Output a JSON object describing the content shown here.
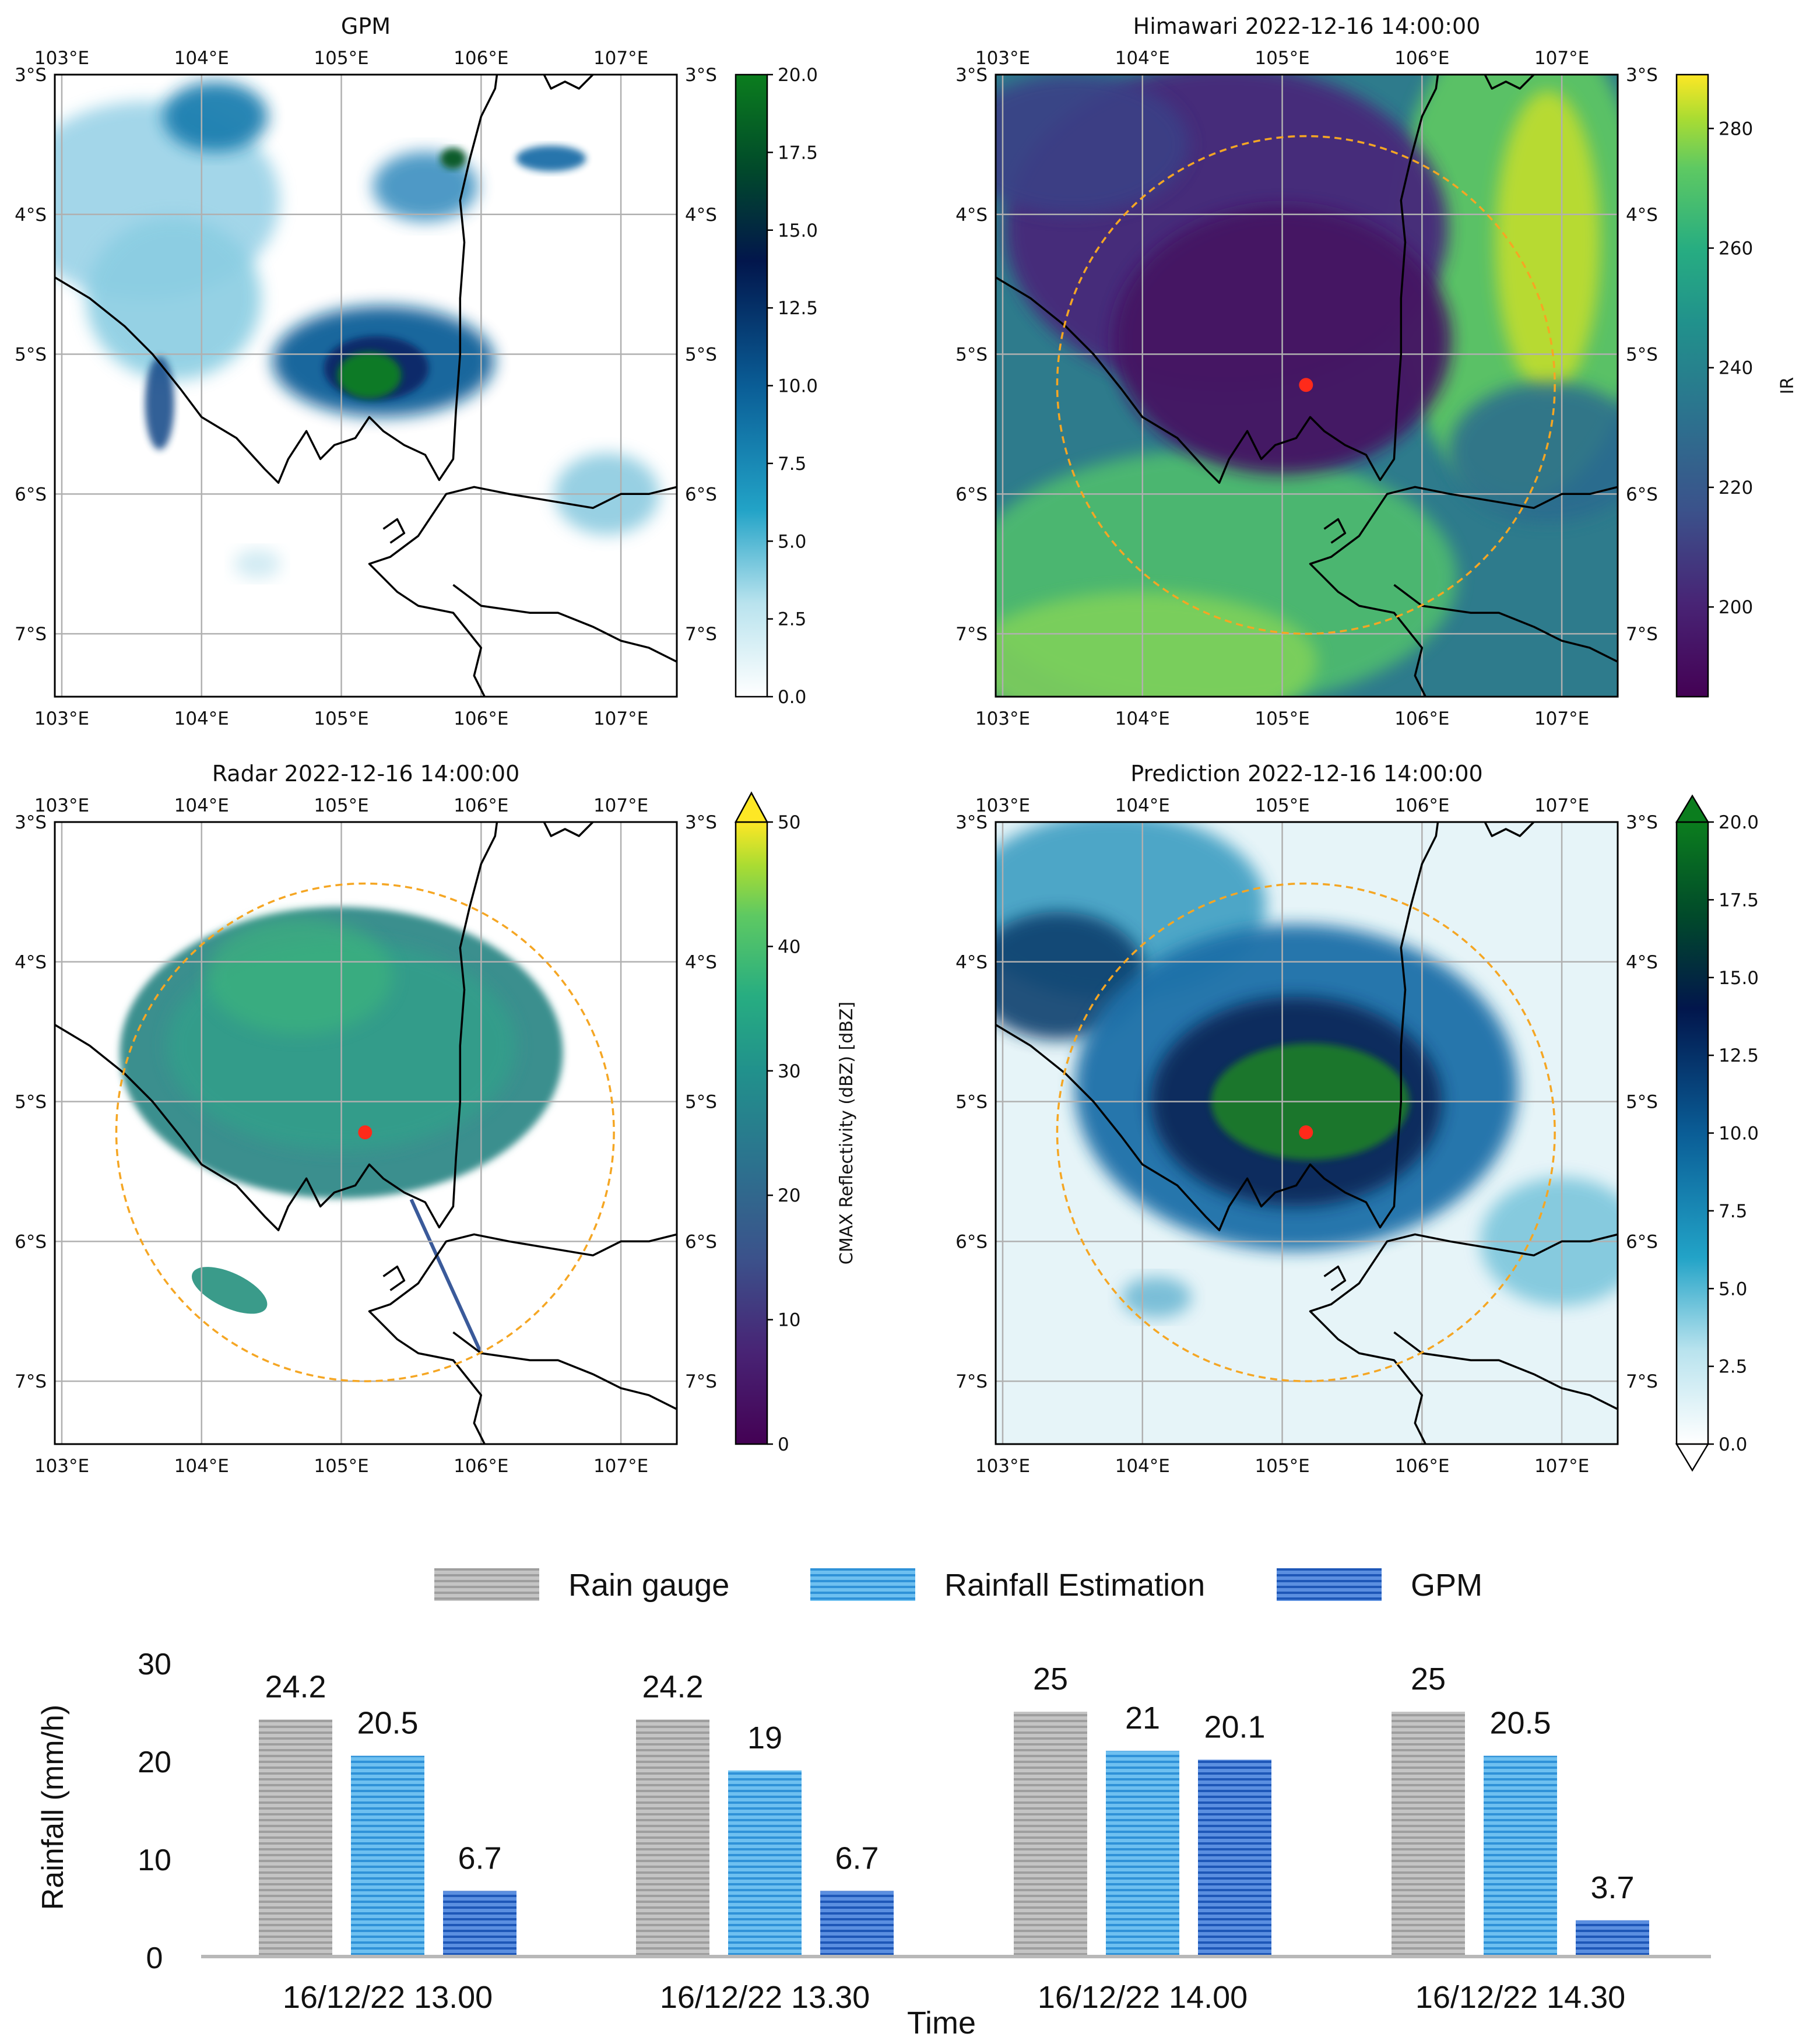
{
  "colors": {
    "gauge": "#b3b3b3",
    "estimation": "#49a9e6",
    "gpm": "#2f6fcf",
    "circle": "#f5a623",
    "center_dot": "#ff2a1a",
    "coast": "#000000",
    "grid": "#b0b0b0"
  },
  "map_axes": {
    "lon_range": [
      102.95,
      107.4
    ],
    "lat_range": [
      -7.45,
      -3.0
    ],
    "lon_ticks": [
      "103°E",
      "104°E",
      "105°E",
      "106°E",
      "107°E"
    ],
    "lat_ticks": [
      "3°S",
      "4°S",
      "5°S",
      "6°S",
      "7°S"
    ],
    "lon_tick_values": [
      103,
      104,
      105,
      106,
      107
    ],
    "lat_tick_values": [
      -3,
      -4,
      -5,
      -6,
      -7
    ],
    "radar_center": [
      105.17,
      -5.22
    ],
    "radar_radius_deg": 1.78
  },
  "panels": [
    {
      "id": "gpm",
      "title": "GPM",
      "colorbar_ticks": [
        "20.0",
        "17.5",
        "15.0",
        "12.5",
        "10.0",
        "7.5",
        "5.0",
        "2.5",
        "0.0"
      ],
      "colorbar_label": "",
      "colormap": "ocean_r",
      "show_circle": false
    },
    {
      "id": "himawari",
      "title": "Himawari 2022-12-16 14:00:00",
      "colorbar_ticks": [
        "280",
        "260",
        "240",
        "220",
        "200"
      ],
      "colorbar_label": "IR",
      "colormap": "viridis",
      "show_circle": true
    },
    {
      "id": "radar",
      "title": "Radar 2022-12-16 14:00:00",
      "colorbar_ticks": [
        "50",
        "40",
        "30",
        "20",
        "10",
        "0"
      ],
      "colorbar_label": "CMAX Reflectivity (dBZ) [dBZ]",
      "colormap": "viridis",
      "show_circle": true
    },
    {
      "id": "prediction",
      "title": "Prediction 2022-12-16 14:00:00",
      "colorbar_ticks": [
        "20.0",
        "17.5",
        "15.0",
        "12.5",
        "10.0",
        "7.5",
        "5.0",
        "2.5",
        "0.0"
      ],
      "colorbar_label": "",
      "colormap": "ocean_r",
      "show_circle": true
    }
  ],
  "chart_data": {
    "type": "bar",
    "categories": [
      "16/12/22 13.00",
      "16/12/22 13.30",
      "16/12/22 14.00",
      "16/12/22 14.30"
    ],
    "series": [
      {
        "name": "Rain gauge",
        "values": [
          24.2,
          24.2,
          25,
          25
        ],
        "labels": [
          "24.2",
          "24.2",
          "25",
          "25"
        ]
      },
      {
        "name": "Rainfall Estimation",
        "values": [
          20.5,
          19,
          21,
          20.5
        ],
        "labels": [
          "20.5",
          "19",
          "21",
          "20.5"
        ]
      },
      {
        "name": "GPM",
        "values": [
          6.7,
          6.7,
          20.1,
          3.7
        ],
        "labels": [
          "6.7",
          "6.7",
          "20.1",
          "3.7"
        ]
      }
    ],
    "xlabel": "Time",
    "ylabel": "Rainfall (mm/h)",
    "yticks": [
      "30",
      "20",
      "10",
      "0"
    ],
    "ytick_values": [
      30,
      20,
      10,
      0
    ],
    "ylim": [
      0,
      30
    ],
    "legend_position": "top-center"
  }
}
